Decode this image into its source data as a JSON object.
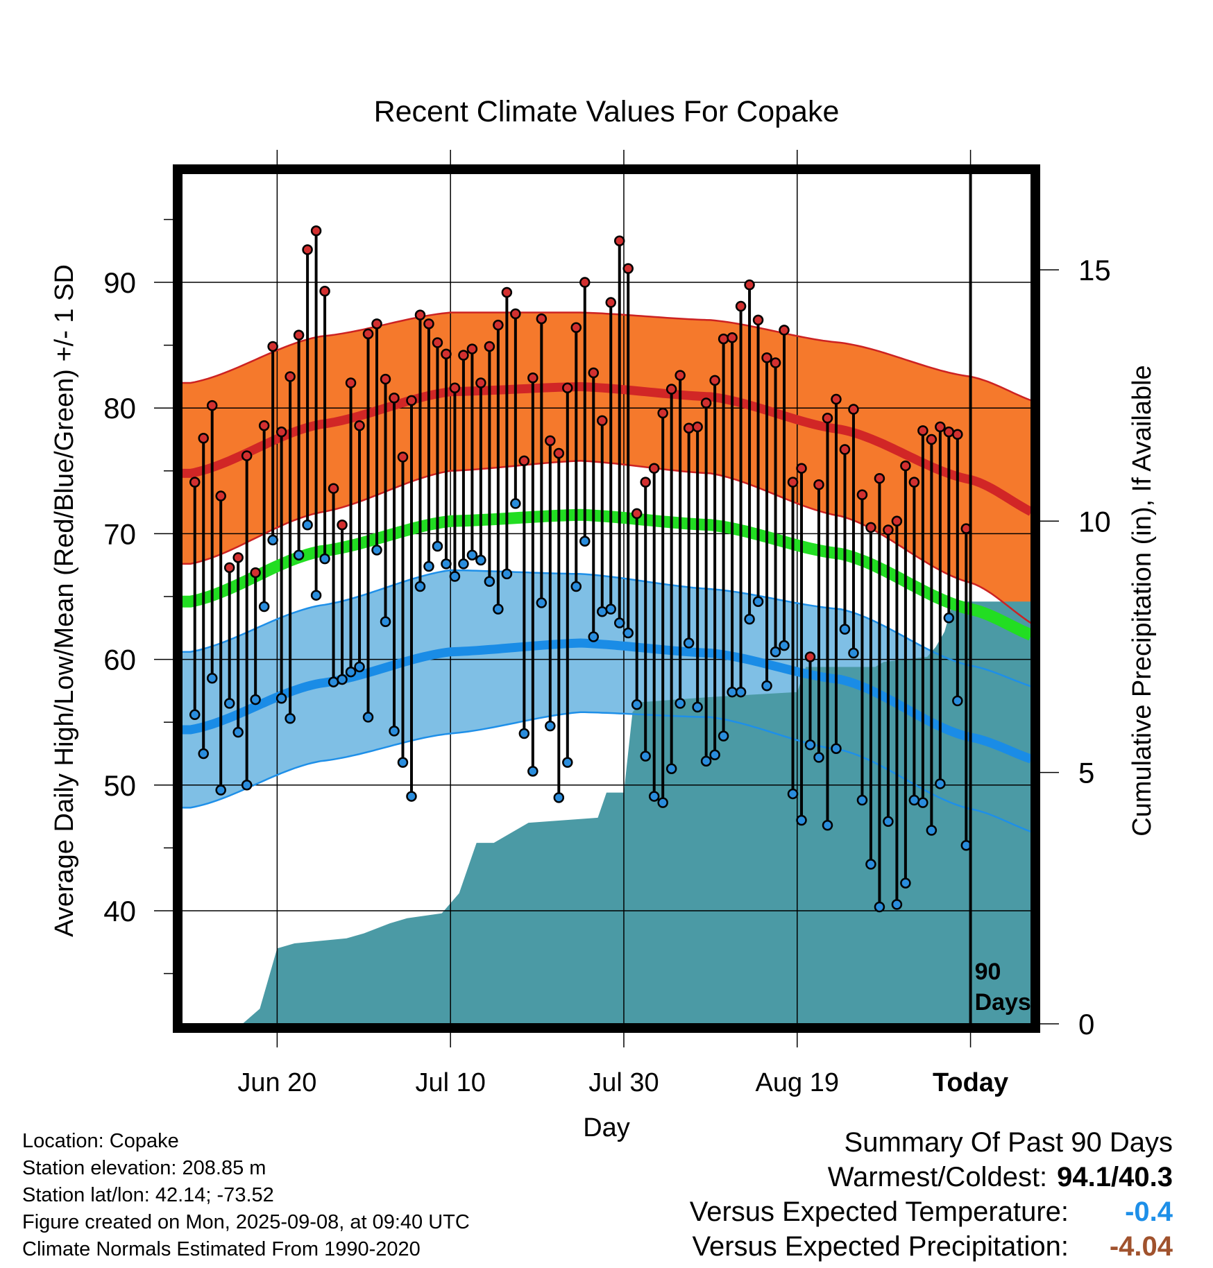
{
  "chart_data": {
    "type": "line",
    "title": "Recent Climate Values For Copake",
    "xlabel": "Day",
    "ylabel": "Average Daily High/Low/Mean (Red/Blue/Green) +/- 1 SD",
    "y2label": "Cumulative Precipitation (in), If Available",
    "x_range_days": [
      -91,
      7
    ],
    "ylim": [
      31,
      99
    ],
    "y2lim": [
      0,
      17
    ],
    "y_ticks": [
      40,
      50,
      60,
      70,
      80,
      90
    ],
    "y2_ticks": [
      0,
      5,
      10,
      15
    ],
    "x_ticks": [
      {
        "day": -80,
        "label": "Jun 20"
      },
      {
        "day": -60,
        "label": "Jul 10"
      },
      {
        "day": -40,
        "label": "Jul 30"
      },
      {
        "day": -20,
        "label": "Aug 19"
      },
      {
        "day": 0,
        "label": "Today"
      }
    ],
    "grid": true,
    "period_marker": {
      "day": 0,
      "label_line1": "90",
      "label_line2": "Days"
    },
    "colors": {
      "high_band": "#f5792c",
      "high_line": "#d12626",
      "high_edge": "#cc2222",
      "low_band": "#7fbfe5",
      "low_line": "#1a8ce6",
      "low_edge": "#1e8fe8",
      "mean_line": "#22dd22",
      "precip": "#4b9aa5",
      "high_marker": "#d23030",
      "low_marker": "#2a8ddd"
    },
    "normals": {
      "day": [
        -90,
        -75,
        -60,
        -45,
        -30,
        -15,
        0,
        9
      ],
      "high_mean": [
        74.8,
        78.7,
        81.3,
        81.7,
        80.9,
        78.3,
        74.3,
        71.2
      ],
      "high_sd": [
        7.2,
        7.0,
        6.3,
        5.9,
        6.1,
        6.9,
        8.2,
        9.0
      ],
      "low_mean": [
        54.4,
        58.1,
        60.6,
        61.3,
        60.5,
        58.4,
        53.8,
        51.7
      ],
      "low_sd": [
        6.2,
        6.2,
        6.5,
        5.5,
        5.1,
        5.6,
        5.7,
        5.8
      ],
      "mean": [
        64.6,
        68.6,
        71.0,
        71.5,
        70.7,
        68.4,
        64.0,
        61.5
      ]
    },
    "series": [
      {
        "name": "Daily High",
        "values": [
          74.1,
          77.6,
          80.2,
          73.0,
          67.3,
          68.1,
          76.2,
          66.9,
          78.6,
          84.9,
          78.1,
          82.5,
          85.8,
          92.6,
          94.1,
          89.3,
          73.6,
          70.7,
          82.0,
          78.6,
          85.9,
          86.7,
          82.3,
          80.8,
          76.1,
          80.6,
          87.4,
          86.7,
          85.2,
          84.3,
          81.6,
          84.2,
          84.7,
          82.0,
          84.9,
          86.6,
          89.2,
          87.5,
          75.8,
          82.4,
          87.1,
          77.4,
          76.4,
          81.6,
          86.4,
          90.0,
          82.8,
          79.0,
          88.4,
          93.3,
          91.1,
          71.6,
          74.1,
          75.2,
          79.6,
          81.5,
          82.6,
          78.4,
          78.5,
          80.4,
          82.2,
          85.5,
          85.6,
          88.1,
          89.8,
          87.0,
          84.0,
          83.6,
          86.2,
          74.1,
          75.2,
          60.2,
          73.9,
          79.2,
          80.7,
          76.7,
          79.9,
          73.1,
          70.5,
          74.4,
          70.3,
          71.0,
          75.4,
          74.1,
          78.2,
          77.5,
          78.5,
          78.1,
          77.9,
          70.4
        ]
      },
      {
        "name": "Daily Low",
        "values": [
          55.6,
          52.5,
          58.5,
          49.6,
          56.5,
          54.2,
          50.0,
          56.8,
          64.2,
          69.5,
          56.9,
          55.3,
          68.3,
          70.7,
          65.1,
          68.0,
          58.2,
          58.4,
          59.0,
          59.4,
          55.4,
          68.7,
          63.0,
          54.3,
          51.8,
          49.1,
          65.8,
          67.4,
          69.0,
          67.6,
          66.6,
          67.6,
          68.3,
          67.9,
          66.2,
          64.0,
          66.8,
          72.4,
          54.1,
          51.1,
          64.5,
          54.7,
          49.0,
          51.8,
          65.8,
          69.4,
          61.8,
          63.8,
          64.0,
          62.9,
          62.1,
          56.4,
          52.3,
          49.1,
          48.6,
          51.3,
          56.5,
          61.3,
          56.2,
          51.9,
          52.4,
          53.9,
          57.4,
          57.4,
          63.2,
          64.6,
          57.9,
          60.6,
          61.1,
          49.3,
          47.2,
          53.2,
          52.2,
          46.8,
          52.9,
          62.4,
          60.5,
          48.8,
          43.7,
          40.3,
          47.1,
          40.5,
          42.2,
          48.8,
          48.6,
          46.4,
          50.1,
          63.3,
          56.7,
          45.2
        ]
      },
      {
        "name": "Cumulative Precipitation",
        "day": [
          -90,
          -84,
          -82,
          -80,
          -78,
          -72,
          -70,
          -67,
          -65,
          -61,
          -59,
          -57,
          -55,
          -53,
          -51,
          -43,
          -42,
          -40,
          -39,
          -38,
          -30,
          -20,
          -19,
          -11,
          -10,
          -5,
          -4,
          -3,
          -2,
          9
        ],
        "values": [
          0.0,
          0.0,
          0.3,
          1.5,
          1.6,
          1.7,
          1.8,
          2.0,
          2.1,
          2.2,
          2.6,
          3.6,
          3.6,
          3.8,
          4.0,
          4.1,
          4.6,
          4.6,
          6.2,
          6.4,
          6.5,
          6.6,
          7.1,
          7.1,
          7.2,
          7.3,
          7.5,
          7.8,
          8.4,
          8.4
        ]
      }
    ]
  },
  "info": {
    "location": "Location: Copake",
    "elevation": "Station elevation: 208.85 m",
    "latlon": "Station lat/lon: 42.14; -73.52",
    "created": "Figure created on Mon, 2025-09-08, at 09:40 UTC",
    "normals": "Climate Normals Estimated From 1990-2020"
  },
  "summary": {
    "heading": "Summary Of Past 90 Days",
    "warm_cold_label": "Warmest/Coldest:",
    "warm_cold_value": "94.1/40.3",
    "temp_label": "Versus Expected Temperature:",
    "temp_value": "-0.4",
    "temp_color": "#1e8fe8",
    "precip_label": "Versus Expected Precipitation:",
    "precip_value": "-4.04",
    "precip_color": "#a0522d"
  }
}
